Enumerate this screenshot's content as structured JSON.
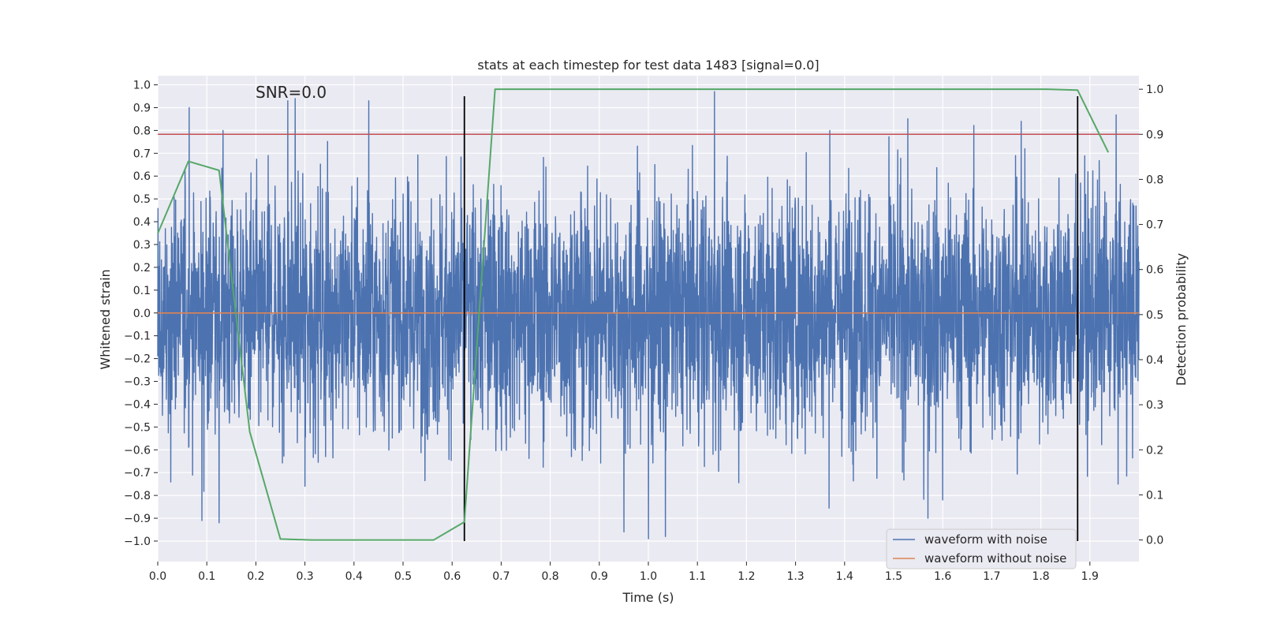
{
  "chart_data": {
    "type": "line",
    "title": "stats at each timestep for test data 1483 [signal=0.0]",
    "xlabel": "Time (s)",
    "ylabel_left": "Whitened strain",
    "ylabel_right": "Detection probability",
    "xlim": [
      0.0,
      2.0
    ],
    "ylim_left": [
      -1.09,
      1.04
    ],
    "ylim_right": [
      -0.048,
      1.03
    ],
    "xticks": [
      "0.0",
      "0.1",
      "0.2",
      "0.3",
      "0.4",
      "0.5",
      "0.6",
      "0.7",
      "0.8",
      "0.9",
      "1.0",
      "1.1",
      "1.2",
      "1.3",
      "1.4",
      "1.5",
      "1.6",
      "1.7",
      "1.8",
      "1.9"
    ],
    "yticks_left": [
      "1.0",
      "0.9",
      "0.8",
      "0.7",
      "0.6",
      "0.5",
      "0.4",
      "0.3",
      "0.2",
      "0.1",
      "0.0",
      "-0.1",
      "-0.2",
      "-0.3",
      "-0.4",
      "-0.5",
      "-0.6",
      "-0.7",
      "-0.8",
      "-0.9",
      "-1.0"
    ],
    "yticks_right": [
      "1.0",
      "0.9",
      "0.8",
      "0.7",
      "0.6",
      "0.5",
      "0.4",
      "0.3",
      "0.2",
      "0.1",
      "0.0"
    ],
    "annotation": "SNR=0.0",
    "noise_series": {
      "name": "waveform with noise",
      "color": "#4c72b0",
      "samples": 4000,
      "amplitude_std": 0.27,
      "peak_highs": [
        [
          0.064,
          0.9
        ],
        [
          0.133,
          0.8
        ],
        [
          0.265,
          0.93
        ],
        [
          0.28,
          0.94
        ],
        [
          0.43,
          0.93
        ],
        [
          1.0,
          0.85
        ],
        [
          1.135,
          0.97
        ],
        [
          1.37,
          0.8
        ],
        [
          1.76,
          0.84
        ]
      ],
      "peak_lows": [
        [
          0.09,
          -0.91
        ],
        [
          0.125,
          -0.92
        ],
        [
          0.3,
          -0.76
        ],
        [
          0.95,
          -0.96
        ],
        [
          1.0,
          -0.99
        ],
        [
          1.035,
          -0.98
        ],
        [
          1.57,
          -0.9
        ],
        [
          1.6,
          -0.82
        ]
      ]
    },
    "clean_series": {
      "name": "waveform without noise",
      "color": "#dd8452",
      "value": 0.0
    },
    "probability_series": {
      "name": "detection probability",
      "color": "#55a868",
      "x": [
        0.0,
        0.0625,
        0.125,
        0.1875,
        0.25,
        0.3125,
        0.5625,
        0.625,
        0.6875,
        0.75,
        1.8125,
        1.875,
        1.9375
      ],
      "y": [
        0.68,
        0.84,
        0.82,
        0.24,
        0.002,
        0.0,
        0.0,
        0.04,
        1.0,
        1.0,
        1.0,
        0.998,
        0.86
      ]
    },
    "threshold": {
      "value": 0.9,
      "axis": "right",
      "color": "#c44e52"
    },
    "vertical_markers": {
      "x": [
        0.625,
        1.875
      ],
      "ymin": -1.0,
      "ymax": 0.95,
      "color": "#000000"
    },
    "legend": {
      "position": "bottom-right",
      "entries": [
        {
          "label": "waveform with noise",
          "color": "#4c72b0"
        },
        {
          "label": "waveform without noise",
          "color": "#dd8452"
        }
      ]
    }
  }
}
